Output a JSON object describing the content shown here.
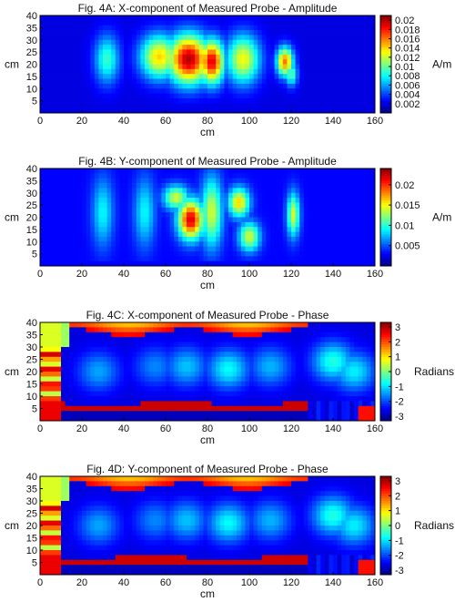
{
  "chart_data": [
    {
      "type": "heatmap",
      "title": "Fig. 4A: X-component of Measured Probe - Amplitude",
      "xlabel": "cm",
      "ylabel": "cm",
      "xlim": [
        0,
        160
      ],
      "ylim": [
        0,
        40
      ],
      "xticks": [
        "0",
        "20",
        "40",
        "60",
        "80",
        "100",
        "120",
        "140",
        "160"
      ],
      "yticks": [
        "5",
        "10",
        "15",
        "20",
        "25",
        "30",
        "35",
        "40"
      ],
      "colorbar": {
        "label": "A/m",
        "range": [
          0,
          0.021
        ],
        "ticks": [
          "0.02",
          "0.018",
          "0.016",
          "0.014",
          "0.012",
          "0.01",
          "0.008",
          "0.006",
          "0.004",
          "0.002"
        ]
      },
      "hotspots": [
        {
          "x": 32,
          "y": 22,
          "w": 6,
          "h": 10,
          "v": 0.009
        },
        {
          "x": 57,
          "y": 23,
          "w": 9,
          "h": 9,
          "v": 0.014
        },
        {
          "x": 71,
          "y": 22,
          "w": 10,
          "h": 10,
          "v": 0.02
        },
        {
          "x": 82,
          "y": 21,
          "w": 6,
          "h": 9,
          "v": 0.019
        },
        {
          "x": 97,
          "y": 22,
          "w": 8,
          "h": 10,
          "v": 0.013
        },
        {
          "x": 117,
          "y": 21,
          "w": 4,
          "h": 6,
          "v": 0.016
        },
        {
          "x": 120,
          "y": 16,
          "w": 3,
          "h": 5,
          "v": 0.01
        }
      ],
      "base": 0.002,
      "mode": "amplitude"
    },
    {
      "type": "heatmap",
      "title": "Fig. 4B: Y-component of Measured Probe - Amplitude",
      "xlabel": "cm",
      "ylabel": "cm",
      "xlim": [
        0,
        160
      ],
      "ylim": [
        0,
        40
      ],
      "xticks": [
        "0",
        "20",
        "40",
        "60",
        "80",
        "100",
        "120",
        "140",
        "160"
      ],
      "yticks": [
        "5",
        "10",
        "15",
        "20",
        "25",
        "30",
        "35",
        "40"
      ],
      "colorbar": {
        "label": "A/m",
        "range": [
          0,
          0.024
        ],
        "ticks": [
          "0.02",
          "0.015",
          "0.01",
          "0.005"
        ]
      },
      "hotspots": [
        {
          "x": 30,
          "y": 22,
          "w": 5,
          "h": 14,
          "v": 0.009
        },
        {
          "x": 50,
          "y": 22,
          "w": 5,
          "h": 14,
          "v": 0.009
        },
        {
          "x": 65,
          "y": 28,
          "w": 6,
          "h": 5,
          "v": 0.014
        },
        {
          "x": 72,
          "y": 19,
          "w": 6,
          "h": 8,
          "v": 0.022
        },
        {
          "x": 82,
          "y": 22,
          "w": 5,
          "h": 14,
          "v": 0.014
        },
        {
          "x": 95,
          "y": 26,
          "w": 5,
          "h": 6,
          "v": 0.016
        },
        {
          "x": 100,
          "y": 12,
          "w": 5,
          "h": 6,
          "v": 0.014
        },
        {
          "x": 121,
          "y": 21,
          "w": 3,
          "h": 9,
          "v": 0.014
        }
      ],
      "base": 0.003,
      "mode": "amplitude"
    },
    {
      "type": "heatmap",
      "title": "Fig. 4C: X-component of Measured Probe - Phase",
      "xlabel": "cm",
      "ylabel": "Radians",
      "axis_ylabel": "cm",
      "xlim": [
        0,
        160
      ],
      "ylim": [
        0,
        40
      ],
      "xticks": [
        "0",
        "20",
        "40",
        "60",
        "80",
        "100",
        "120",
        "140",
        "160"
      ],
      "yticks": [
        "5",
        "10",
        "15",
        "20",
        "25",
        "30",
        "35",
        "40"
      ],
      "colorbar": {
        "label": "Radians",
        "range": [
          -3.3,
          3.3
        ],
        "ticks": [
          "3",
          "2",
          "1",
          "0",
          "-1",
          "-2",
          "-3"
        ]
      },
      "mode": "phase"
    },
    {
      "type": "heatmap",
      "title": "Fig. 4D: Y-component of Measured Probe - Phase",
      "xlabel": "cm",
      "ylabel": "Radians",
      "axis_ylabel": "cm",
      "xlim": [
        0,
        160
      ],
      "ylim": [
        0,
        40
      ],
      "xticks": [
        "0",
        "20",
        "40",
        "60",
        "80",
        "100",
        "120",
        "140",
        "160"
      ],
      "yticks": [
        "5",
        "10",
        "15",
        "20",
        "25",
        "30",
        "35",
        "40"
      ],
      "colorbar": {
        "label": "Radians",
        "range": [
          -3.3,
          3.3
        ],
        "ticks": [
          "3",
          "2",
          "1",
          "0",
          "-1",
          "-2",
          "-3"
        ]
      },
      "mode": "phase"
    }
  ],
  "colors": {
    "axis": "#000000",
    "background": "#ffffff"
  }
}
